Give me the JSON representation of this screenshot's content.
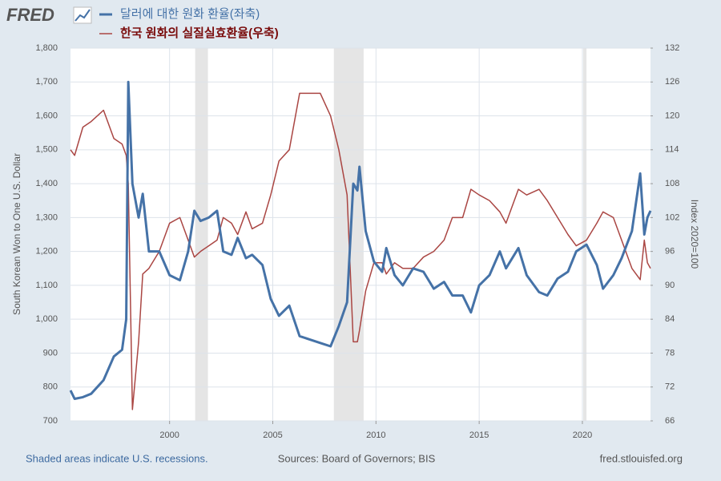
{
  "chart_data": {
    "type": "line",
    "logo": "FRED",
    "x": [
      1995.2,
      1995.4,
      1995.8,
      1996.2,
      1996.8,
      1997.3,
      1997.7,
      1997.9,
      1998.0,
      1998.2,
      1998.5,
      1998.7,
      1999.0,
      1999.5,
      2000.0,
      2000.5,
      2000.9,
      2001.2,
      2001.5,
      2001.9,
      2002.3,
      2002.6,
      2003.0,
      2003.3,
      2003.7,
      2004.0,
      2004.5,
      2004.9,
      2005.3,
      2005.8,
      2006.3,
      2006.8,
      2007.3,
      2007.8,
      2008.2,
      2008.6,
      2008.9,
      2009.1,
      2009.2,
      2009.5,
      2009.9,
      2010.3,
      2010.5,
      2010.9,
      2011.3,
      2011.8,
      2012.3,
      2012.8,
      2013.3,
      2013.7,
      2014.2,
      2014.6,
      2015.0,
      2015.5,
      2016.0,
      2016.3,
      2016.9,
      2017.3,
      2017.9,
      2018.3,
      2018.8,
      2019.3,
      2019.7,
      2020.2,
      2020.7,
      2021.0,
      2021.5,
      2021.9,
      2022.4,
      2022.8,
      2023.0,
      2023.15,
      2023.3
    ],
    "series": [
      {
        "name": "달러에 대한 원화 환율(좌축)",
        "color": "#4572a7",
        "axis": "y",
        "values": [
          790,
          765,
          770,
          780,
          820,
          890,
          910,
          1000,
          1700,
          1400,
          1300,
          1370,
          1200,
          1200,
          1130,
          1115,
          1200,
          1320,
          1290,
          1300,
          1320,
          1200,
          1190,
          1240,
          1180,
          1190,
          1160,
          1060,
          1010,
          1040,
          950,
          940,
          930,
          920,
          980,
          1050,
          1400,
          1380,
          1450,
          1260,
          1170,
          1140,
          1210,
          1130,
          1100,
          1150,
          1140,
          1090,
          1110,
          1070,
          1070,
          1020,
          1100,
          1130,
          1200,
          1150,
          1210,
          1130,
          1080,
          1070,
          1120,
          1140,
          1200,
          1220,
          1160,
          1090,
          1130,
          1180,
          1260,
          1430,
          1250,
          1300,
          1320
        ]
      },
      {
        "name": "한국 원화의 실질실효환율(우축)",
        "color": "#aa4643",
        "axis": "y2",
        "values": [
          114,
          113,
          118,
          119,
          121,
          116,
          115,
          113,
          108,
          68,
          80,
          92,
          93,
          96,
          101,
          102,
          98,
          95,
          96,
          97,
          98,
          102,
          101,
          99,
          103,
          100,
          101,
          106,
          112,
          114,
          124,
          124,
          124,
          120,
          114,
          106,
          80,
          80,
          82,
          89,
          94,
          94,
          92,
          94,
          93,
          93,
          95,
          96,
          98,
          102,
          102,
          107,
          106,
          105,
          103,
          101,
          107,
          106,
          107,
          105,
          102,
          99,
          97,
          98,
          101,
          103,
          102,
          98,
          93,
          91,
          98,
          94,
          93
        ]
      }
    ],
    "xlim": [
      1995.2,
      2023.3
    ],
    "xticks": [
      2000,
      2005,
      2010,
      2015,
      2020
    ],
    "ylim": [
      700,
      1800
    ],
    "yticks": [
      {
        "value": 700,
        "label": "700"
      },
      {
        "value": 800,
        "label": "800"
      },
      {
        "value": 900,
        "label": "900"
      },
      {
        "value": 1000,
        "label": "1,000"
      },
      {
        "value": 1100,
        "label": "1,100"
      },
      {
        "value": 1200,
        "label": "1,200"
      },
      {
        "value": 1300,
        "label": "1,300"
      },
      {
        "value": 1400,
        "label": "1,400"
      },
      {
        "value": 1500,
        "label": "1,500"
      },
      {
        "value": 1600,
        "label": "1,600"
      },
      {
        "value": 1700,
        "label": "1,700"
      },
      {
        "value": 1800,
        "label": "1,800"
      }
    ],
    "y2lim": [
      66,
      132
    ],
    "y2ticks": [
      66,
      72,
      78,
      84,
      90,
      96,
      102,
      108,
      114,
      120,
      126,
      132
    ],
    "ylabel": "South Korean Won to One U.S. Dollar",
    "y2label": "Index 2020=100",
    "recessions": [
      [
        2001.24,
        2001.86
      ],
      [
        2007.96,
        2009.4
      ],
      [
        2020.04,
        2020.2
      ]
    ],
    "grid": true,
    "footer_left": "Shaded areas indicate U.S. recessions.",
    "footer_center": "Sources: Board of Governors; BIS",
    "footer_right": "fred.stlouisfed.org"
  }
}
